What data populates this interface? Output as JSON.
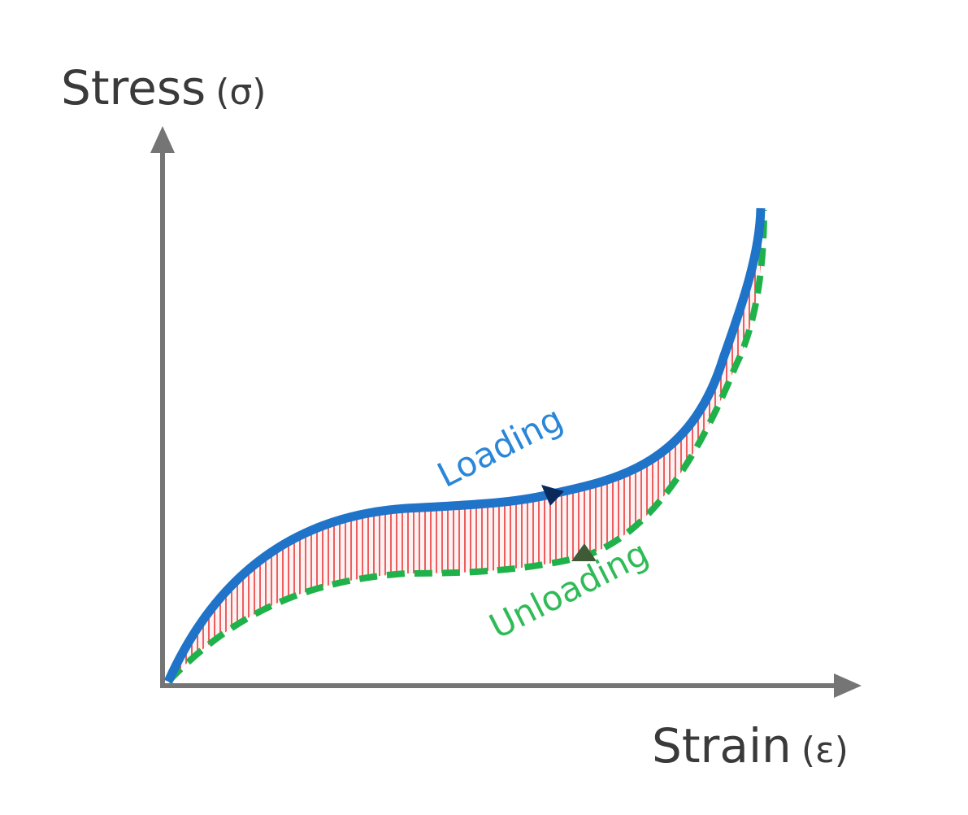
{
  "diagram": {
    "y_axis": {
      "name": "Stress",
      "symbol": "(σ)"
    },
    "x_axis": {
      "name": "Strain",
      "symbol": "(ε)"
    },
    "curves": {
      "loading": {
        "label": "Loading",
        "color": "#1f74c9",
        "style": "solid"
      },
      "unloading": {
        "label": "Unloading",
        "color": "#1fb24a",
        "style": "dashed"
      }
    },
    "hysteresis_fill_color": "#e83a3a",
    "axis_color": "#757575",
    "arrow_loading_color": "#0b2a5c",
    "arrow_unloading_color": "#3f5a36",
    "edge_glyph": {
      "text": "/",
      "color": "#6a2fa6"
    }
  }
}
